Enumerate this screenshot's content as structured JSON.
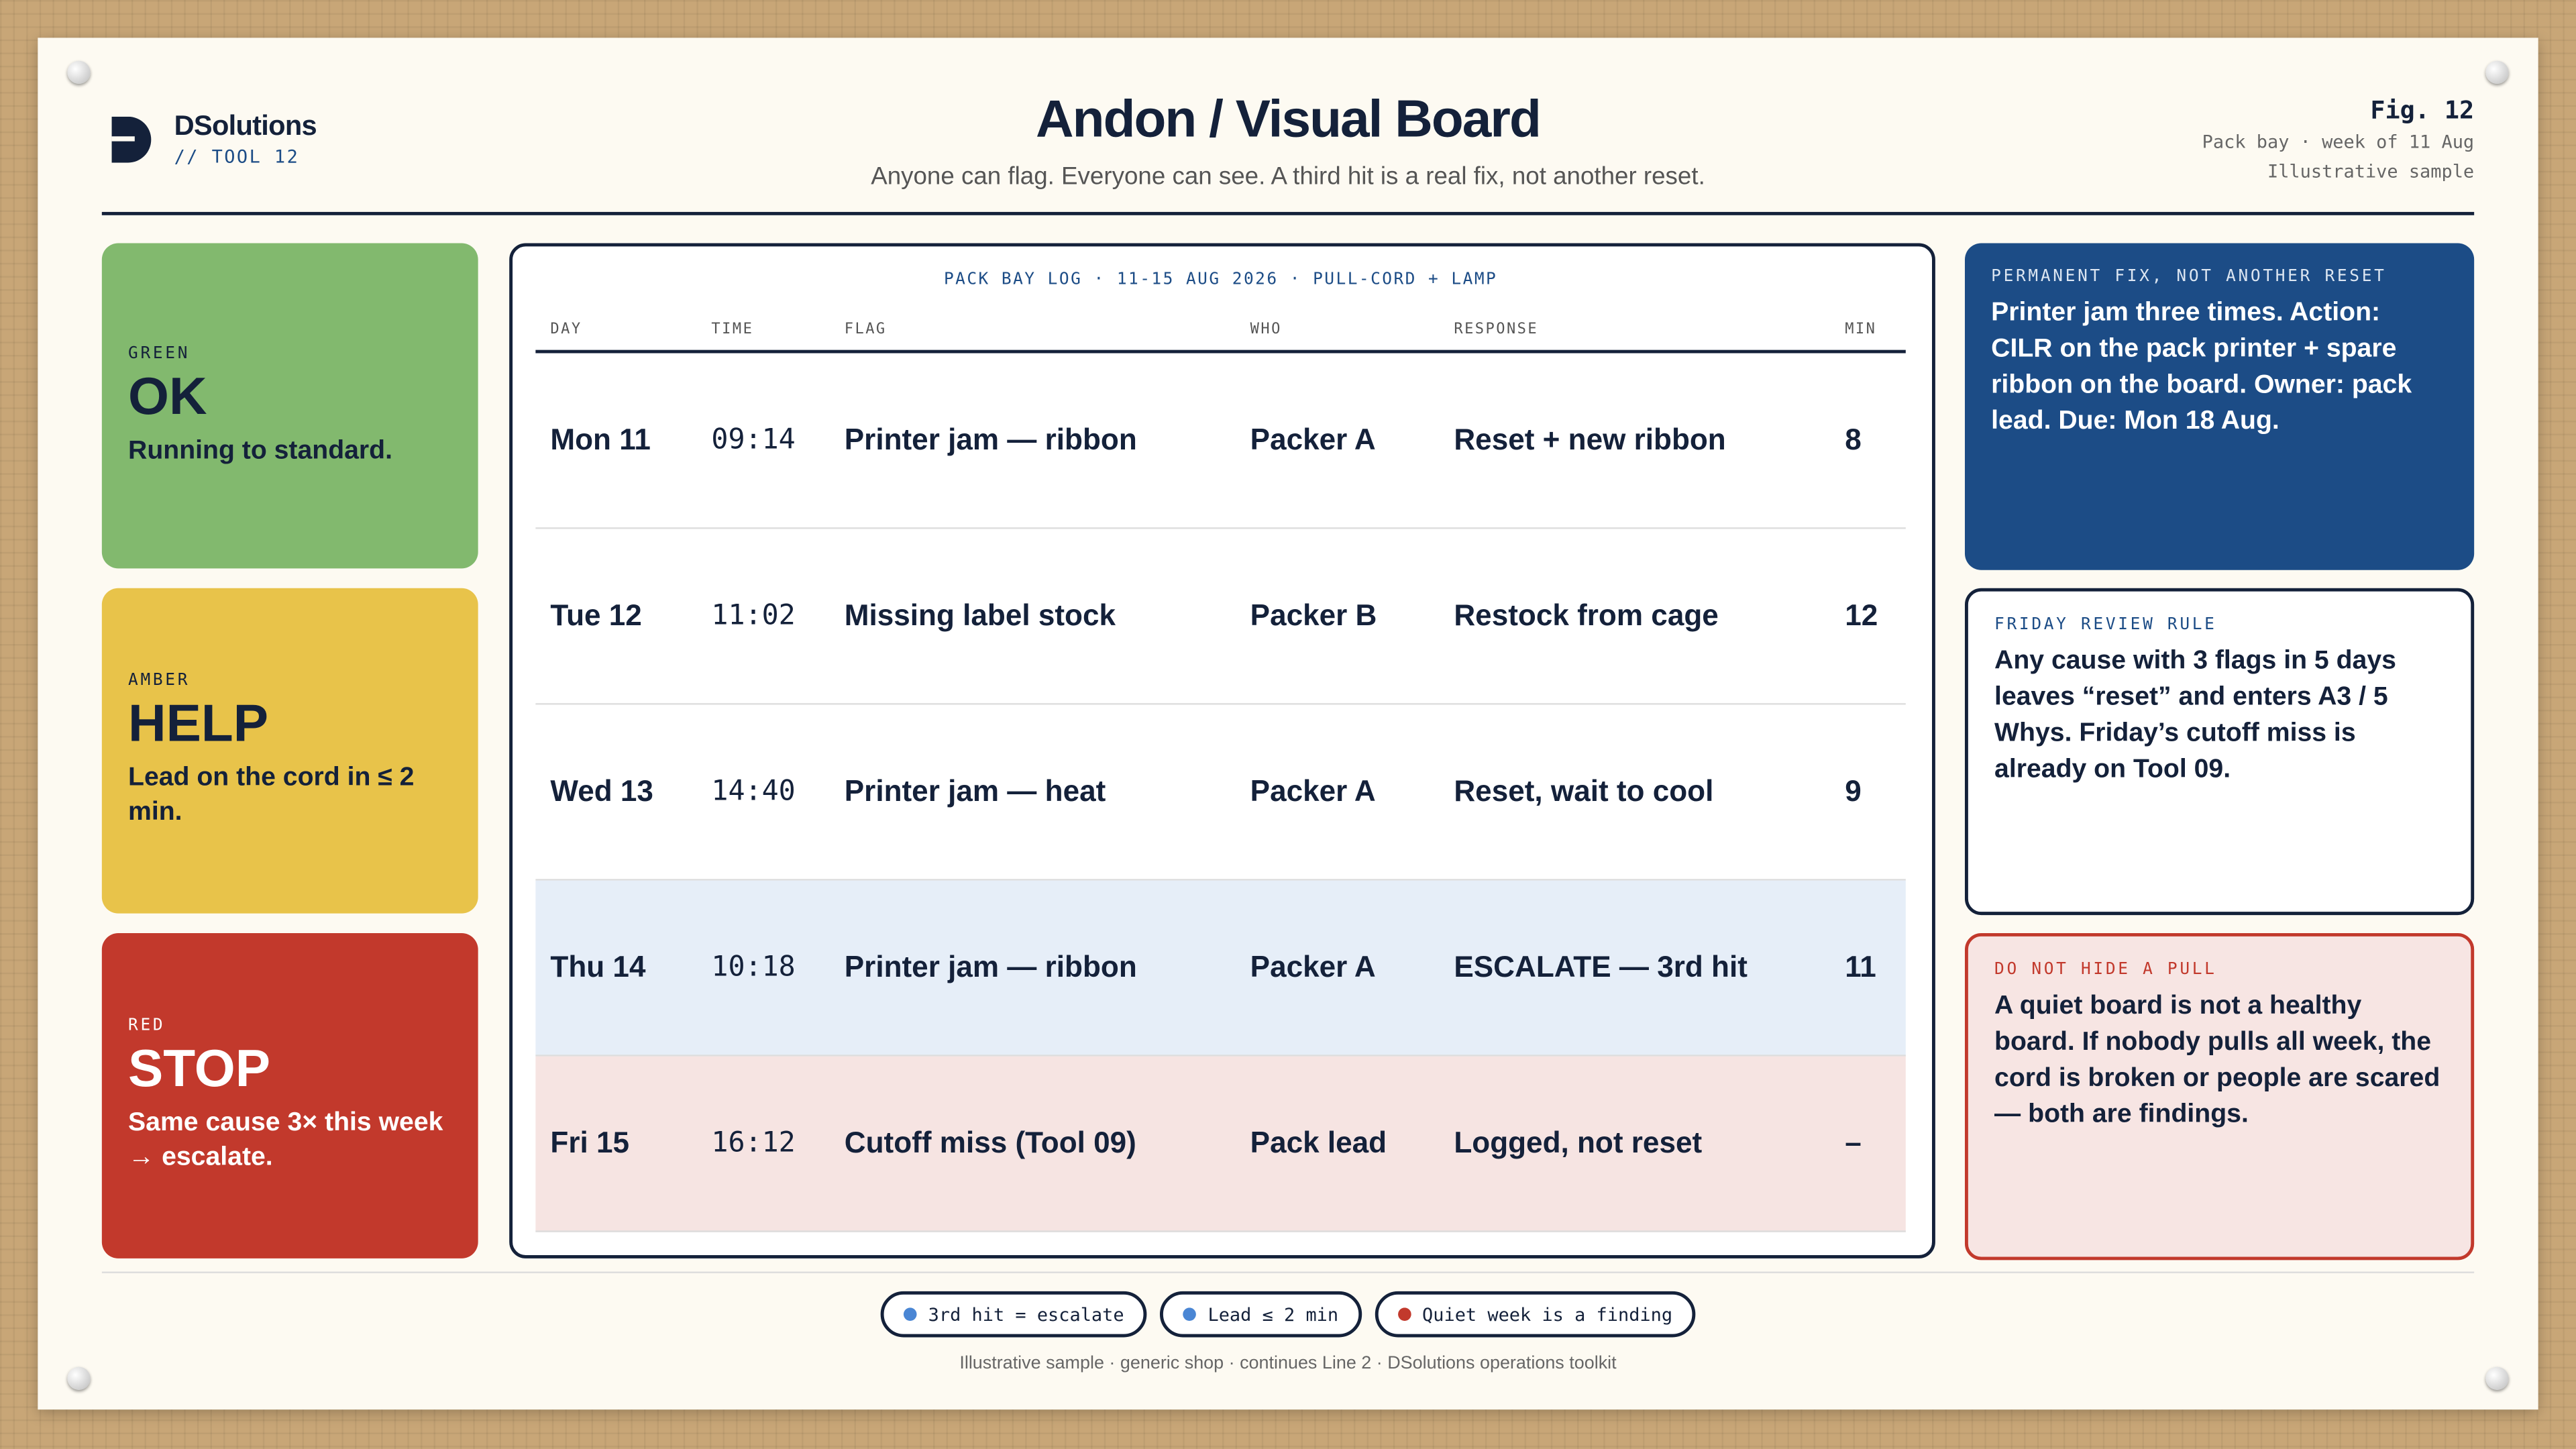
{
  "header": {
    "brand": "DSolutions",
    "tool": "// TOOL 12",
    "title": "Andon / Visual Board",
    "subtitle": "Anyone can flag. Everyone can see. A third hit is a real fix, not another reset.",
    "fig": "Fig. 12",
    "fig_note_1": "Pack bay · week of 11 Aug",
    "fig_note_2": "Illustrative sample"
  },
  "status_cards": [
    {
      "label": "GREEN",
      "title": "OK",
      "text": "Running to standard."
    },
    {
      "label": "AMBER",
      "title": "HELP",
      "text": "Lead on the cord in ≤ 2 min."
    },
    {
      "label": "RED",
      "title": "STOP",
      "text": "Same cause 3× this week → escalate."
    }
  ],
  "table": {
    "caption": "PACK BAY LOG · 11-15 AUG 2026 · PULL-CORD + LAMP",
    "columns": [
      "DAY",
      "TIME",
      "FLAG",
      "WHO",
      "RESPONSE",
      "MIN"
    ],
    "rows": [
      [
        "Mon 11",
        "09:14",
        "Printer jam — ribbon",
        "Packer A",
        "Reset + new ribbon",
        "8"
      ],
      [
        "Tue 12",
        "11:02",
        "Missing label stock",
        "Packer B",
        "Restock from cage",
        "12"
      ],
      [
        "Wed 13",
        "14:40",
        "Printer jam — heat",
        "Packer A",
        "Reset, wait to cool",
        "9"
      ],
      [
        "Thu 14",
        "10:18",
        "Printer jam — ribbon",
        "Packer A",
        "ESCALATE — 3rd hit",
        "11"
      ],
      [
        "Fri 15",
        "16:12",
        "Cutoff miss (Tool 09)",
        "Pack lead",
        "Logged, not reset",
        "–"
      ]
    ]
  },
  "notes": [
    {
      "label": "PERMANENT FIX, NOT ANOTHER RESET",
      "text": "Printer jam three times. Action: CILR on the pack printer + spare ribbon on the board. Owner: pack lead. Due: Mon 18 Aug."
    },
    {
      "label": "FRIDAY REVIEW RULE",
      "text": "Any cause with 3 flags in 5 days leaves “reset” and enters A3 / 5 Whys. Friday’s cutoff miss is already on Tool 09."
    },
    {
      "label": "DO NOT HIDE A PULL",
      "text": "A quiet board is not a healthy board. If nobody pulls all week, the cord is broken or people are scared — both are findings."
    }
  ],
  "chips": [
    "3rd hit = escalate",
    "Lead ≤ 2 min",
    "Quiet week is a finding"
  ],
  "footer": "Illustrative sample · generic shop · continues Line 2 · DSolutions operations toolkit"
}
